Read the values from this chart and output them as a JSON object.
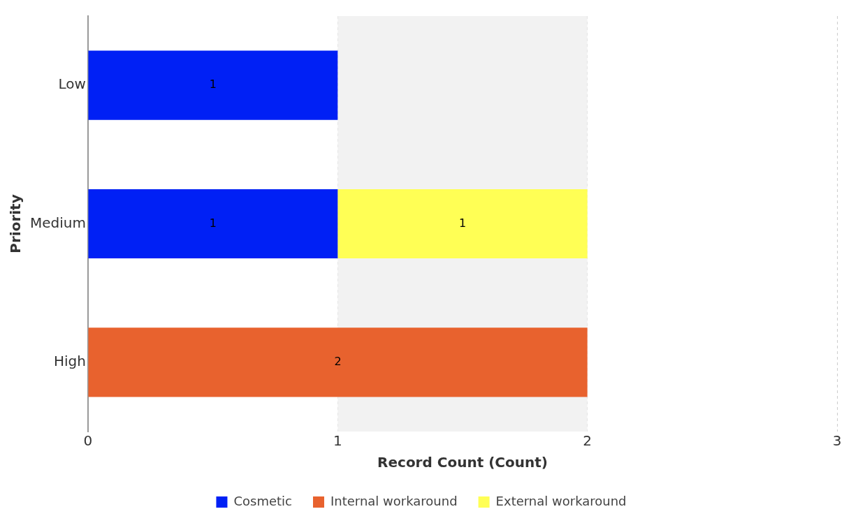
{
  "chart_data": {
    "type": "bar",
    "orientation": "horizontal",
    "stacked": true,
    "xlabel": "Record Count (Count)",
    "ylabel": "Priority",
    "categories": [
      "Low",
      "Medium",
      "High"
    ],
    "series": [
      {
        "name": "Cosmetic",
        "color": "#0020f5",
        "values": [
          1,
          1,
          null
        ]
      },
      {
        "name": "Internal workaround",
        "color": "#e8622e",
        "values": [
          null,
          null,
          2
        ]
      },
      {
        "name": "External workaround",
        "color": "#ffff55",
        "values": [
          null,
          1,
          null
        ]
      }
    ],
    "xlim": [
      0,
      3
    ],
    "xticks": [
      0,
      1,
      2,
      3
    ],
    "bands": [
      {
        "axis": "x",
        "from": 1,
        "to": 2,
        "color": "#f2f2f2"
      }
    ],
    "grid": "x",
    "legend": "bottom",
    "data_labels": true
  }
}
